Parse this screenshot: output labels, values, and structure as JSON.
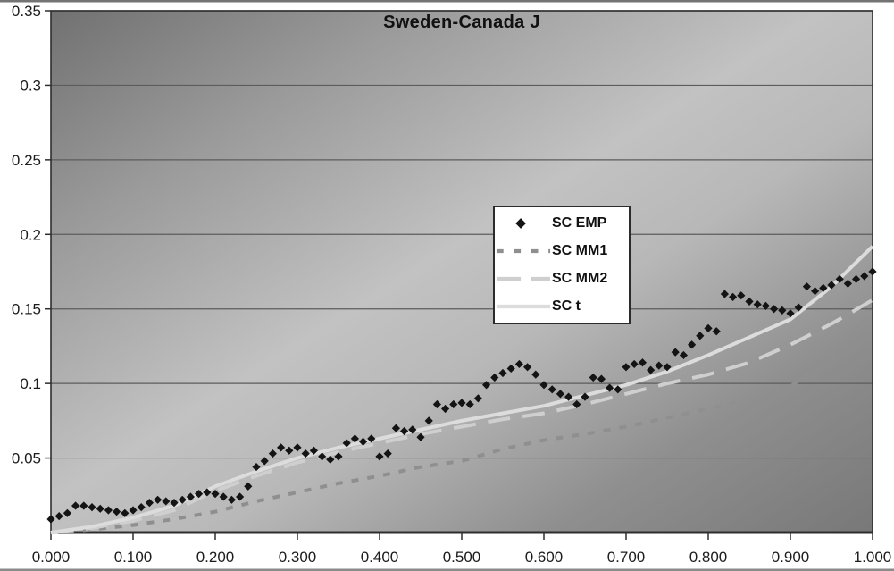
{
  "chart": {
    "title": "Sweden-Canada J",
    "colors": {
      "page_bg": "#ffffff",
      "plot_dark_corner": "#717171",
      "plot_light_mid": "#c2c2c2",
      "grid": "#5c5c5c",
      "axis": "#2e2e2e",
      "text": "#1c1c1c",
      "emp": "#141414",
      "mm1": "#8f8f8f",
      "mm2": "#cfcfcf",
      "t": "#dcdcdc",
      "legend_bg": "#ffffff",
      "legend_border": "#2b2b2b",
      "scan_band": "#5a5a5a"
    },
    "y_axis": {
      "tick_labels": [
        "0.05",
        "0.1",
        "0.15",
        "0.2",
        "0.25",
        "0.3",
        "0.35"
      ]
    },
    "x_axis": {
      "tick_labels": [
        "0.000",
        "0.100",
        "0.200",
        "0.300",
        "0.400",
        "0.500",
        "0.600",
        "0.700",
        "0.800",
        "0.900",
        "1.000"
      ]
    },
    "legend": {
      "items": [
        {
          "id": "sc-emp",
          "label": "SC EMP",
          "marker": "diamond"
        },
        {
          "id": "sc-mm1",
          "label": "SC MM1",
          "marker": "short-dash"
        },
        {
          "id": "sc-mm2",
          "label": "SC MM2",
          "marker": "long-dash"
        },
        {
          "id": "sc-t",
          "label": "SC t",
          "marker": "solid"
        }
      ]
    }
  },
  "chart_data": {
    "type": "scatter",
    "title": "Sweden-Canada J",
    "xlabel": "",
    "ylabel": "",
    "xlim": [
      0,
      1
    ],
    "ylim": [
      0,
      0.35
    ],
    "grid": "horizontal",
    "legend_position": "center-right",
    "x_tick_step": 0.1,
    "y_tick_step": 0.05,
    "series": [
      {
        "name": "SC EMP",
        "render": "scatter",
        "marker": "diamond",
        "color_key": "emp",
        "x_start": 0,
        "x_step": 0.01,
        "values": [
          0.009,
          0.011,
          0.013,
          0.018,
          0.018,
          0.017,
          0.016,
          0.015,
          0.014,
          0.013,
          0.015,
          0.017,
          0.02,
          0.022,
          0.021,
          0.02,
          0.022,
          0.024,
          0.026,
          0.027,
          0.026,
          0.024,
          0.022,
          0.024,
          0.031,
          0.044,
          0.048,
          0.053,
          0.057,
          0.055,
          0.057,
          0.053,
          0.055,
          0.051,
          0.049,
          0.051,
          0.06,
          0.063,
          0.061,
          0.063,
          0.051,
          0.053,
          0.07,
          0.068,
          0.069,
          0.064,
          0.075,
          0.086,
          0.083,
          0.086,
          0.087,
          0.086,
          0.09,
          0.099,
          0.104,
          0.107,
          0.11,
          0.113,
          0.111,
          0.106,
          0.099,
          0.096,
          0.093,
          0.091,
          0.086,
          0.091,
          0.104,
          0.103,
          0.097,
          0.096,
          0.111,
          0.113,
          0.114,
          0.109,
          0.112,
          0.111,
          0.121,
          0.119,
          0.126,
          0.132,
          0.137,
          0.135,
          0.16,
          0.158,
          0.159,
          0.155,
          0.153,
          0.152,
          0.15,
          0.149,
          0.147,
          0.151,
          0.165,
          0.162,
          0.164,
          0.166,
          0.17,
          0.167,
          0.17,
          0.172,
          0.175
        ]
      },
      {
        "name": "SC MM1",
        "render": "line",
        "style": "short-dash",
        "color_key": "mm1",
        "x_start": 0,
        "x_step": 0.05,
        "values": [
          0.0,
          0.002,
          0.005,
          0.009,
          0.014,
          0.021,
          0.027,
          0.033,
          0.038,
          0.044,
          0.048,
          0.056,
          0.062,
          0.066,
          0.071,
          0.077,
          0.083,
          0.089,
          0.098,
          0.117,
          0.148
        ]
      },
      {
        "name": "SC MM2",
        "render": "line",
        "style": "long-dash",
        "color_key": "mm2",
        "x_start": 0,
        "x_step": 0.05,
        "values": [
          0.0,
          0.003,
          0.008,
          0.015,
          0.028,
          0.038,
          0.047,
          0.054,
          0.06,
          0.066,
          0.071,
          0.076,
          0.08,
          0.086,
          0.093,
          0.1,
          0.106,
          0.114,
          0.126,
          0.14,
          0.156
        ]
      },
      {
        "name": "SC t",
        "render": "line",
        "style": "solid",
        "color_key": "t",
        "x_start": 0,
        "x_step": 0.05,
        "values": [
          0.0,
          0.004,
          0.01,
          0.018,
          0.031,
          0.041,
          0.05,
          0.057,
          0.063,
          0.069,
          0.075,
          0.08,
          0.085,
          0.092,
          0.099,
          0.108,
          0.119,
          0.131,
          0.143,
          0.165,
          0.192
        ]
      }
    ]
  }
}
